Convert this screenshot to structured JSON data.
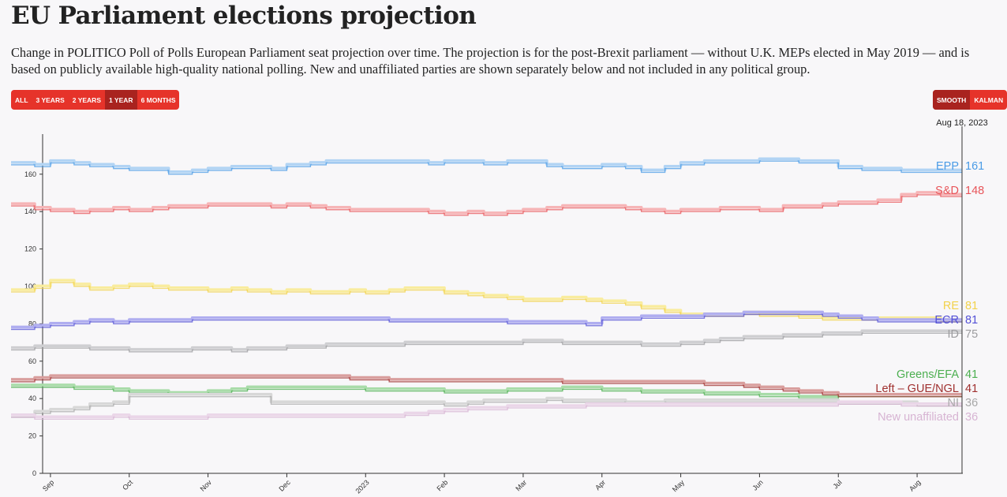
{
  "title": "EU Parliament elections projection",
  "subtitle": "Change in POLITICO Poll of Polls European Parliament seat projection over time. The projection is for the post-Brexit parliament — without U.K. MEPs elected in May 2019 — and is based on publicly available high-quality national polling. New and unaffiliated parties are shown separately below and not included in any political group.",
  "range_buttons": [
    {
      "label": "ALL",
      "active": false
    },
    {
      "label": "3 YEARS",
      "active": false
    },
    {
      "label": "2 YEARS",
      "active": false
    },
    {
      "label": "1 YEAR",
      "active": true
    },
    {
      "label": "6 MONTHS",
      "active": false
    }
  ],
  "mode_buttons": [
    {
      "label": "SMOOTH",
      "active": true
    },
    {
      "label": "KALMAN",
      "active": false
    }
  ],
  "chart_data": {
    "type": "line",
    "title": "EU Parliament elections projection",
    "xlabel": "",
    "ylabel": "",
    "ylim": [
      0,
      175
    ],
    "y_ticks": [
      "0",
      "20",
      "40",
      "60",
      "80",
      "100",
      "120",
      "140",
      "160"
    ],
    "x_ticks": [
      "Sep",
      "Oct",
      "Nov",
      "Dec",
      "2023",
      "Feb",
      "Mar",
      "Apr",
      "May",
      "Jun",
      "Jul",
      "Aug"
    ],
    "x_tick_months": [
      1,
      2,
      3,
      4,
      5,
      6,
      7,
      8,
      9,
      10,
      11,
      12
    ],
    "x_range_months": [
      0.5,
      12.58
    ],
    "hover_date": "Aug 18, 2023",
    "hover_month": 12.57,
    "series": [
      {
        "name": "EPP",
        "value_label": "161",
        "color": "#4a9be6",
        "light": "#b2d4f4",
        "x": [
          0.5,
          0.8,
          1.0,
          1.3,
          1.5,
          1.8,
          2.0,
          2.3,
          2.5,
          2.8,
          3.0,
          3.3,
          3.5,
          3.8,
          4.0,
          4.3,
          4.5,
          4.8,
          5.0,
          5.3,
          5.5,
          5.8,
          6.0,
          6.3,
          6.5,
          6.8,
          7.0,
          7.3,
          7.5,
          7.8,
          8.0,
          8.3,
          8.5,
          8.8,
          9.0,
          9.3,
          9.5,
          9.8,
          10.0,
          10.3,
          10.5,
          10.8,
          11.0,
          11.3,
          11.5,
          11.8,
          12.0,
          12.3,
          12.57
        ],
        "values": [
          165,
          164,
          166,
          165,
          164,
          163,
          162,
          162,
          160,
          161,
          162,
          163,
          163,
          162,
          164,
          165,
          166,
          166,
          166,
          166,
          166,
          165,
          166,
          166,
          165,
          166,
          166,
          164,
          163,
          163,
          164,
          163,
          161,
          163,
          165,
          166,
          166,
          166,
          167,
          167,
          166,
          166,
          163,
          162,
          162,
          161,
          161,
          161,
          161
        ]
      },
      {
        "name": "S&D",
        "value_label": "148",
        "color": "#e8555a",
        "light": "#f6b5b7",
        "x": [
          0.5,
          0.8,
          1.0,
          1.3,
          1.5,
          1.8,
          2.0,
          2.3,
          2.5,
          2.8,
          3.0,
          3.3,
          3.5,
          3.8,
          4.0,
          4.3,
          4.5,
          4.8,
          5.0,
          5.3,
          5.5,
          5.8,
          6.0,
          6.3,
          6.5,
          6.8,
          7.0,
          7.3,
          7.5,
          7.8,
          8.0,
          8.3,
          8.5,
          8.8,
          9.0,
          9.3,
          9.5,
          9.8,
          10.0,
          10.3,
          10.5,
          10.8,
          11.0,
          11.3,
          11.5,
          11.8,
          12.0,
          12.3,
          12.57
        ],
        "values": [
          143,
          141,
          140,
          139,
          140,
          141,
          140,
          141,
          142,
          142,
          143,
          143,
          143,
          142,
          143,
          142,
          141,
          140,
          140,
          140,
          140,
          139,
          138,
          139,
          138,
          139,
          140,
          141,
          142,
          142,
          142,
          141,
          140,
          139,
          140,
          140,
          141,
          141,
          140,
          142,
          142,
          143,
          144,
          144,
          145,
          148,
          149,
          148,
          148
        ]
      },
      {
        "name": "RE",
        "value_label": "81",
        "color": "#f2d24a",
        "light": "#f9ec9e",
        "x": [
          0.5,
          0.8,
          1.0,
          1.3,
          1.5,
          1.8,
          2.0,
          2.3,
          2.5,
          2.8,
          3.0,
          3.3,
          3.5,
          3.8,
          4.0,
          4.3,
          4.5,
          4.8,
          5.0,
          5.3,
          5.5,
          5.8,
          6.0,
          6.3,
          6.5,
          6.8,
          7.0,
          7.3,
          7.5,
          7.8,
          8.0,
          8.3,
          8.5,
          8.8,
          9.0,
          9.3,
          9.5,
          9.8,
          10.0,
          10.3,
          10.5,
          10.8,
          11.0,
          11.3,
          11.5,
          11.8,
          12.0,
          12.3,
          12.57
        ],
        "values": [
          97,
          99,
          102,
          100,
          98,
          99,
          100,
          99,
          98,
          98,
          97,
          98,
          97,
          96,
          97,
          96,
          96,
          97,
          96,
          97,
          98,
          98,
          96,
          95,
          94,
          93,
          92,
          92,
          93,
          92,
          91,
          90,
          88,
          86,
          84,
          84,
          84,
          85,
          84,
          84,
          83,
          82,
          82,
          82,
          82,
          82,
          82,
          81,
          81
        ]
      },
      {
        "name": "ECR",
        "value_label": "81",
        "color": "#5350d6",
        "light": "#b0aef0",
        "x": [
          0.5,
          0.8,
          1.0,
          1.3,
          1.5,
          1.8,
          2.0,
          2.3,
          2.5,
          2.8,
          3.0,
          3.3,
          3.5,
          3.8,
          4.0,
          4.3,
          4.5,
          4.8,
          5.0,
          5.3,
          5.5,
          5.8,
          6.0,
          6.3,
          6.5,
          6.8,
          7.0,
          7.3,
          7.5,
          7.8,
          8.0,
          8.3,
          8.5,
          8.8,
          9.0,
          9.3,
          9.5,
          9.8,
          10.0,
          10.3,
          10.5,
          10.8,
          11.0,
          11.3,
          11.5,
          11.8,
          12.0,
          12.3,
          12.57
        ],
        "values": [
          77,
          78,
          79,
          80,
          81,
          80,
          81,
          81,
          81,
          82,
          82,
          82,
          82,
          82,
          82,
          82,
          82,
          82,
          82,
          81,
          81,
          81,
          81,
          81,
          81,
          80,
          80,
          80,
          80,
          79,
          82,
          82,
          83,
          83,
          83,
          84,
          84,
          85,
          85,
          85,
          85,
          84,
          83,
          82,
          81,
          81,
          81,
          81,
          81
        ]
      },
      {
        "name": "ID",
        "value_label": "75",
        "color": "#9c9c9f",
        "light": "#cfcfd2",
        "x": [
          0.5,
          0.8,
          1.0,
          1.3,
          1.5,
          1.8,
          2.0,
          2.3,
          2.5,
          2.8,
          3.0,
          3.3,
          3.5,
          3.8,
          4.0,
          4.3,
          4.5,
          4.8,
          5.0,
          5.3,
          5.5,
          5.8,
          6.0,
          6.3,
          6.5,
          6.8,
          7.0,
          7.3,
          7.5,
          7.8,
          8.0,
          8.3,
          8.5,
          8.8,
          9.0,
          9.3,
          9.5,
          9.8,
          10.0,
          10.3,
          10.5,
          10.8,
          11.0,
          11.3,
          11.5,
          11.8,
          12.0,
          12.3,
          12.57
        ],
        "values": [
          66,
          67,
          67,
          67,
          66,
          66,
          65,
          65,
          65,
          66,
          66,
          65,
          66,
          66,
          67,
          67,
          68,
          68,
          68,
          68,
          69,
          69,
          69,
          69,
          69,
          69,
          70,
          70,
          69,
          69,
          69,
          69,
          68,
          68,
          69,
          70,
          71,
          72,
          72,
          73,
          73,
          74,
          74,
          75,
          75,
          75,
          75,
          75,
          75
        ]
      },
      {
        "name": "Greens/EFA",
        "value_label": "41",
        "color": "#4caf50",
        "light": "#a9dca9",
        "x": [
          0.5,
          0.8,
          1.0,
          1.3,
          1.5,
          1.8,
          2.0,
          2.3,
          2.5,
          2.8,
          3.0,
          3.3,
          3.5,
          3.8,
          4.0,
          4.3,
          4.5,
          4.8,
          5.0,
          5.3,
          5.5,
          5.8,
          6.0,
          6.3,
          6.5,
          6.8,
          7.0,
          7.3,
          7.5,
          7.8,
          8.0,
          8.3,
          8.5,
          8.8,
          9.0,
          9.3,
          9.5,
          9.8,
          10.0,
          10.3,
          10.5,
          10.8,
          11.0,
          11.3,
          11.5,
          11.8,
          12.0,
          12.3,
          12.57
        ],
        "values": [
          46,
          46,
          46,
          45,
          45,
          44,
          43,
          43,
          42,
          42,
          43,
          44,
          45,
          45,
          45,
          45,
          45,
          45,
          44,
          44,
          44,
          44,
          43,
          43,
          43,
          44,
          44,
          44,
          45,
          45,
          44,
          44,
          43,
          43,
          43,
          42,
          42,
          42,
          41,
          41,
          40,
          40,
          41,
          41,
          41,
          41,
          41,
          41,
          41
        ]
      },
      {
        "name": "Left – GUE/NGL",
        "value_label": "41",
        "color": "#a0302f",
        "light": "#d99f9e",
        "x": [
          0.5,
          0.8,
          1.0,
          1.3,
          1.5,
          1.8,
          2.0,
          2.3,
          2.5,
          2.8,
          3.0,
          3.3,
          3.5,
          3.8,
          4.0,
          4.3,
          4.5,
          4.8,
          5.0,
          5.3,
          5.5,
          5.8,
          6.0,
          6.3,
          6.5,
          6.8,
          7.0,
          7.3,
          7.5,
          7.8,
          8.0,
          8.3,
          8.5,
          8.8,
          9.0,
          9.3,
          9.5,
          9.8,
          10.0,
          10.3,
          10.5,
          10.8,
          11.0,
          11.3,
          11.5,
          11.8,
          12.0,
          12.3,
          12.57
        ],
        "values": [
          49,
          50,
          51,
          51,
          51,
          51,
          51,
          51,
          51,
          51,
          51,
          51,
          51,
          51,
          51,
          51,
          51,
          50,
          50,
          49,
          49,
          49,
          49,
          49,
          49,
          49,
          49,
          49,
          48,
          48,
          48,
          48,
          48,
          48,
          48,
          47,
          47,
          46,
          45,
          44,
          43,
          42,
          41,
          41,
          41,
          41,
          41,
          41,
          41
        ]
      },
      {
        "name": "NI",
        "value_label": "36",
        "color": "#a8a8a8",
        "light": "#d8d8d8",
        "x": [
          0.5,
          0.8,
          1.0,
          1.3,
          1.5,
          1.8,
          2.0,
          2.3,
          2.5,
          2.8,
          3.0,
          3.3,
          3.5,
          3.8,
          4.0,
          4.3,
          4.5,
          4.8,
          5.0,
          5.3,
          5.5,
          5.8,
          6.0,
          6.3,
          6.5,
          6.8,
          7.0,
          7.3,
          7.5,
          7.8,
          8.0,
          8.3,
          8.5,
          8.8,
          9.0,
          9.3,
          9.5,
          9.8,
          10.0,
          10.3,
          10.5,
          10.8,
          11.0,
          11.3,
          11.5,
          11.8,
          12.0,
          12.3,
          12.57
        ],
        "values": [
          30,
          32,
          33,
          34,
          36,
          37,
          41,
          41,
          41,
          41,
          41,
          41,
          41,
          37,
          37,
          37,
          37,
          37,
          37,
          37,
          37,
          37,
          36,
          37,
          38,
          38,
          38,
          39,
          38,
          38,
          38,
          37,
          37,
          38,
          38,
          38,
          38,
          38,
          38,
          38,
          38,
          38,
          37,
          37,
          37,
          37,
          36,
          36,
          36
        ]
      },
      {
        "name": "New unaffiliated",
        "value_label": "36",
        "color": "#d7b4d3",
        "light": "#ead6e8",
        "x": [
          0.5,
          0.8,
          1.0,
          1.3,
          1.5,
          1.8,
          2.0,
          2.3,
          2.5,
          2.8,
          3.0,
          3.3,
          3.5,
          3.8,
          4.0,
          4.3,
          4.5,
          4.8,
          5.0,
          5.3,
          5.5,
          5.8,
          6.0,
          6.3,
          6.5,
          6.8,
          7.0,
          7.3,
          7.5,
          7.8,
          8.0,
          8.3,
          8.5,
          8.8,
          9.0,
          9.3,
          9.5,
          9.8,
          10.0,
          10.3,
          10.5,
          10.8,
          11.0,
          11.3,
          11.5,
          11.8,
          12.0,
          12.3,
          12.57
        ],
        "values": [
          30,
          29,
          29,
          29,
          29,
          30,
          29,
          29,
          29,
          29,
          30,
          30,
          30,
          30,
          30,
          30,
          30,
          30,
          30,
          30,
          31,
          32,
          33,
          34,
          34,
          35,
          35,
          35,
          35,
          36,
          36,
          36,
          36,
          36,
          36,
          36,
          36,
          36,
          36,
          36,
          36,
          36,
          37,
          37,
          37,
          36,
          36,
          36,
          36
        ]
      }
    ]
  }
}
